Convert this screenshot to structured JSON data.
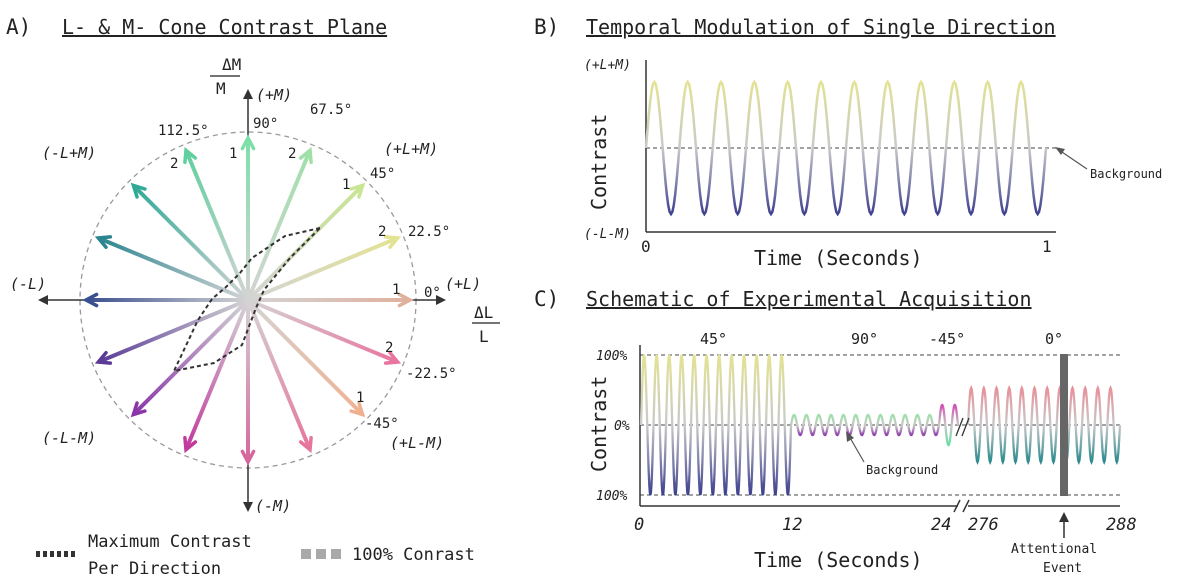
{
  "panel_a": {
    "letter": "A)",
    "title": "L- & M- Cone Contrast Plane",
    "axis_y_num": "ΔM",
    "axis_y_den": "M",
    "axis_x_num": "ΔL",
    "axis_x_den": "L",
    "quadrant_labels": {
      "pos_m": "(+M)",
      "neg_m": "(-M)",
      "pos_l": "(+L)",
      "neg_l": "(-L)",
      "pos_l_pos_m": "(+L+M)",
      "neg_l_pos_m": "(-L+M)",
      "neg_l_neg_m": "(-L-M)",
      "pos_l_neg_m": "(+L-M)"
    },
    "angle_labels": [
      "0°",
      "22.5°",
      "45°",
      "67.5°",
      "90°",
      "112.5°",
      "-22.5°",
      "-45°"
    ],
    "arrow_numbers": {
      "a0": "1",
      "a22": "2",
      "a45": "1",
      "a67": "2",
      "a90": "1",
      "a112": "2",
      "an22": "2",
      "an45": "1"
    },
    "direction_colors": [
      "#e8739e",
      "#e0b09e",
      "#e3e392",
      "#c8e592",
      "#9ee0a8",
      "#7ddfa8",
      "#5fcf9e",
      "#2faa96",
      "#2a8590",
      "#3a4f8e",
      "#5a3a96",
      "#8a35a8",
      "#c2399e",
      "#d5679e",
      "#e6759c",
      "#f0b090"
    ]
  },
  "panel_b": {
    "letter": "B)",
    "title": "Temporal Modulation of Single Direction",
    "y_label": "Contrast",
    "y_top": "(+L+M)",
    "y_bottom": "(-L-M)",
    "x_label": "Time (Seconds)",
    "x_start": "0",
    "x_end": "1",
    "background_label": "Background",
    "cycles": 12
  },
  "panel_c": {
    "letter": "C)",
    "title": "Schematic of Experimental Acquisition",
    "y_label": "Contrast",
    "y_ticks": [
      "100%",
      "0%",
      "100%"
    ],
    "x_label": "Time (Seconds)",
    "x_ticks": [
      "0",
      "12",
      "24",
      "276",
      "288"
    ],
    "segment_labels": [
      "45°",
      "90°",
      "-45°",
      "0°"
    ],
    "background_label": "Background",
    "event_label_1": "Attentional",
    "event_label_2": "Event"
  },
  "legend": {
    "max_label_1": "Maximum Contrast",
    "max_label_2": "Per Direction",
    "full_label": "100% Conrast"
  }
}
